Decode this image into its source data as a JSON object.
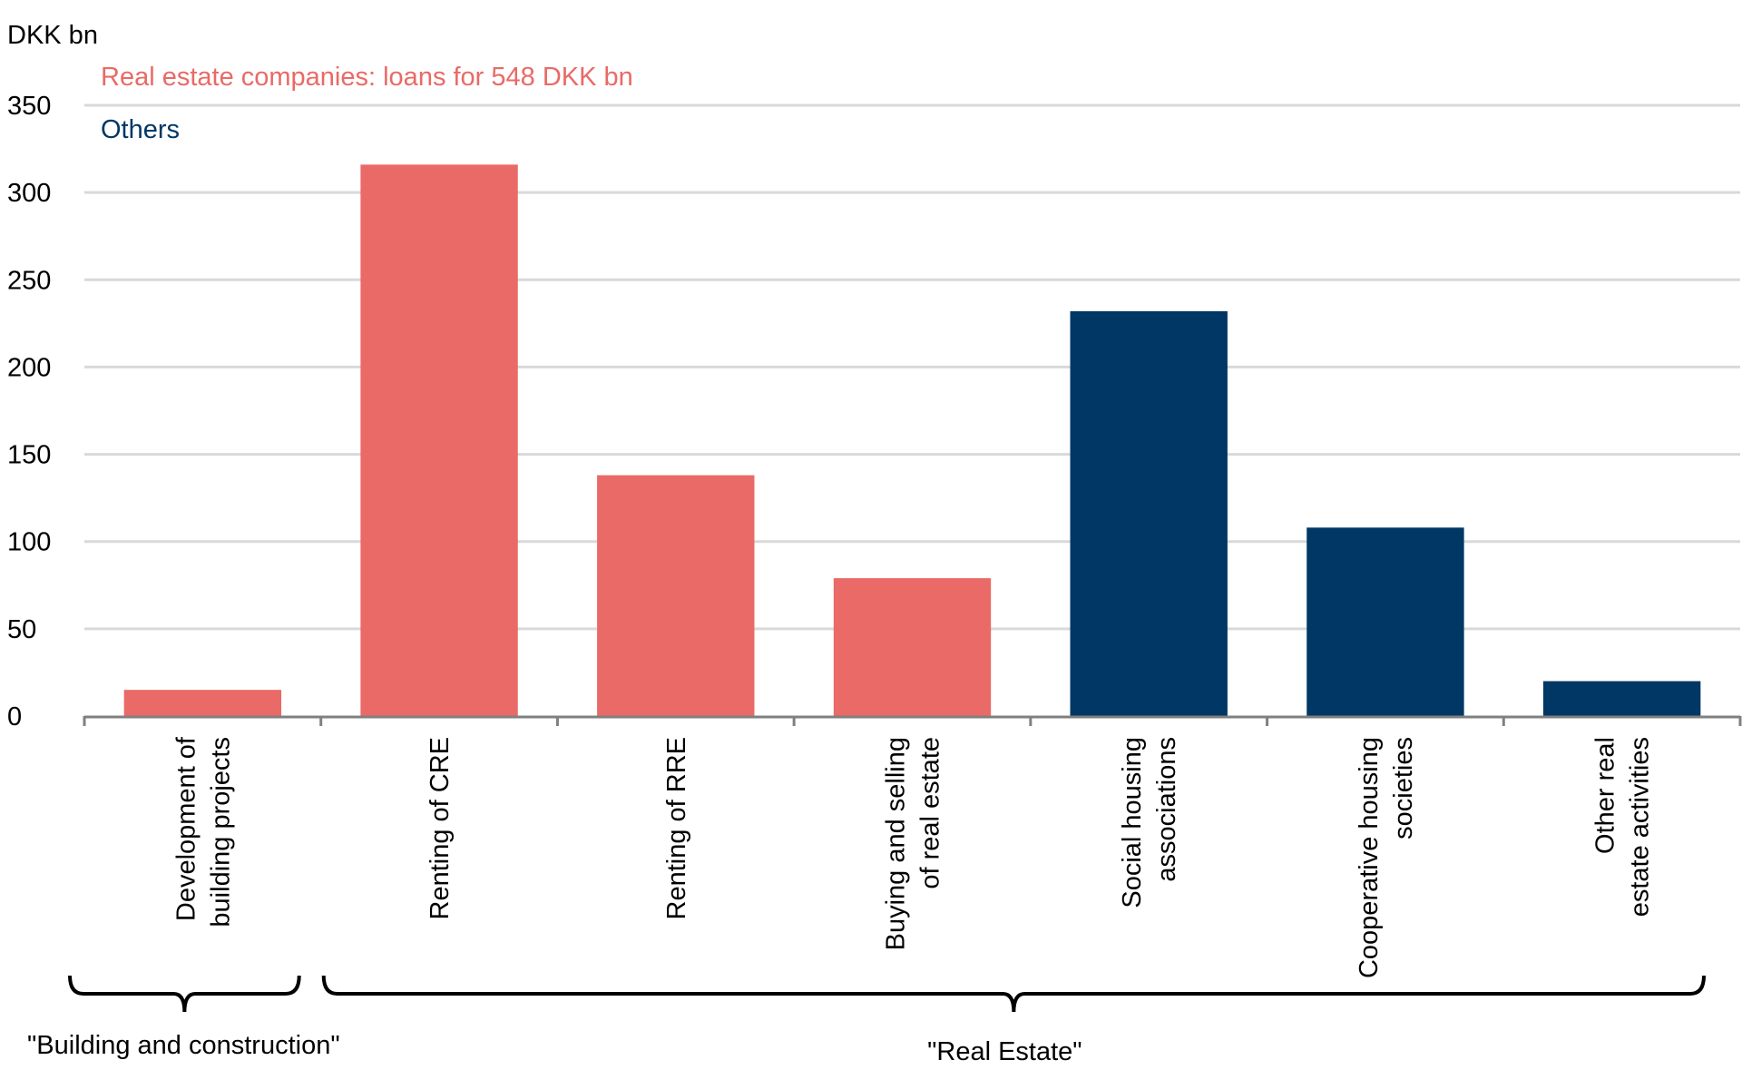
{
  "chart_data": {
    "type": "bar",
    "ylabel": "DKK bn",
    "ylim": [
      0,
      350
    ],
    "yticks": [
      0,
      50,
      100,
      150,
      200,
      250,
      300,
      350
    ],
    "grid": true,
    "categories": [
      [
        "Development of",
        "building projects"
      ],
      [
        "Renting of CRE"
      ],
      [
        "Renting of RRE"
      ],
      [
        "Buying and selling",
        "of real estate"
      ],
      [
        "Social housing",
        "associations"
      ],
      [
        "Cooperative housing",
        "societies"
      ],
      [
        "Other real",
        "estate activities"
      ]
    ],
    "values": [
      15,
      316,
      138,
      79,
      232,
      108,
      20
    ],
    "series_index": [
      0,
      0,
      0,
      0,
      1,
      1,
      1
    ],
    "series": [
      {
        "name": "Real estate companies: loans for 548 DKK bn",
        "color": "#E96A66"
      },
      {
        "name": "Others",
        "color": "#003764"
      }
    ],
    "legend_position": "top-left",
    "groups": [
      {
        "label": "\"Building and construction\"",
        "from": 0,
        "to": 0
      },
      {
        "label": "\"Real Estate\"",
        "from": 1,
        "to": 6
      }
    ]
  }
}
